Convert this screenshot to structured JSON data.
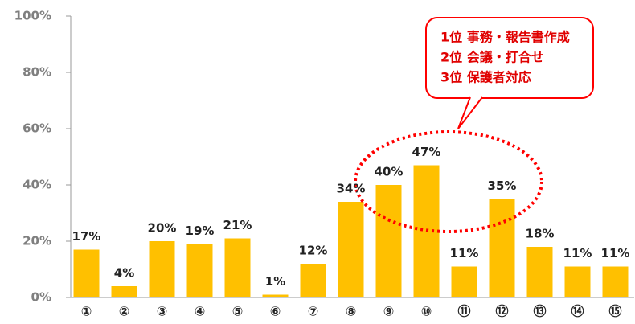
{
  "chart_data": {
    "type": "bar",
    "categories": [
      "①",
      "②",
      "③",
      "④",
      "⑤",
      "⑥",
      "⑦",
      "⑧",
      "⑨",
      "⑩",
      "⑪",
      "⑫",
      "⑬",
      "⑭",
      "⑮"
    ],
    "values": [
      17,
      4,
      20,
      19,
      21,
      1,
      12,
      34,
      40,
      47,
      11,
      35,
      18,
      11,
      11
    ],
    "value_labels": [
      "17%",
      "4%",
      "20%",
      "19%",
      "21%",
      "1%",
      "12%",
      "34%",
      "40%",
      "47%",
      "11%",
      "35%",
      "18%",
      "11%",
      "11%"
    ],
    "color": "#ffc000",
    "ylim": [
      0,
      100
    ],
    "yticks": [
      {
        "value": 0,
        "label": "0%"
      },
      {
        "value": 20,
        "label": "20%"
      },
      {
        "value": 40,
        "label": "40%"
      },
      {
        "value": 60,
        "label": "60%"
      },
      {
        "value": 80,
        "label": "80%"
      },
      {
        "value": 100,
        "label": "100%"
      }
    ],
    "annotations": [
      "1位 事務・報告書作成",
      "2位 会議・打合せ",
      "3位 保護者対応"
    ]
  }
}
